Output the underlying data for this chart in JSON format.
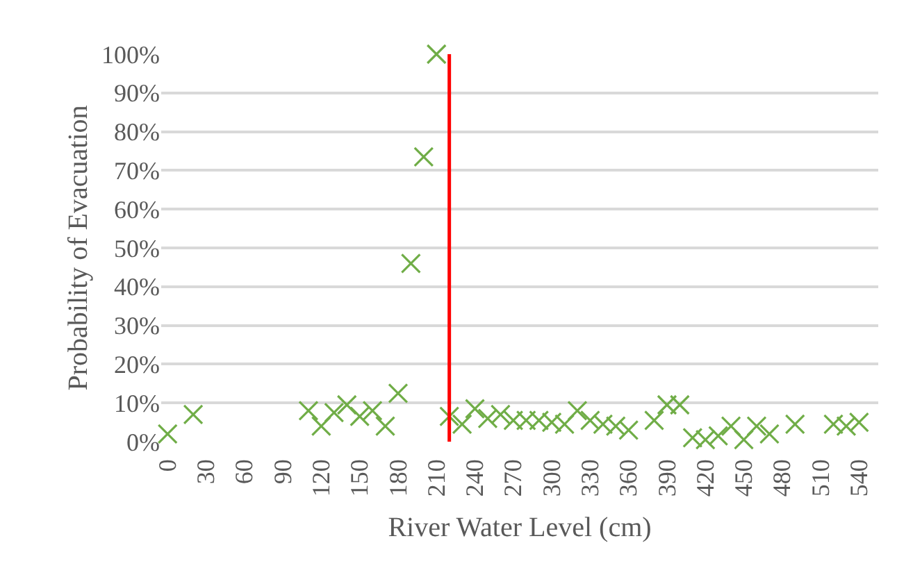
{
  "chart_data": {
    "type": "scatter",
    "xlabel": "River Water Level (cm)",
    "ylabel": "Probability of Evacuation",
    "x": [
      0,
      20,
      110,
      120,
      130,
      140,
      150,
      160,
      170,
      180,
      190,
      200,
      210,
      220,
      230,
      240,
      250,
      260,
      270,
      280,
      290,
      300,
      310,
      320,
      330,
      340,
      350,
      360,
      380,
      390,
      400,
      410,
      420,
      430,
      440,
      450,
      460,
      470,
      490,
      520,
      530,
      540
    ],
    "series": [
      {
        "color": "#70ad47",
        "values": [
          2,
          7,
          8,
          4,
          7.5,
          9.5,
          6.5,
          8,
          4,
          12.5,
          46,
          73.5,
          100,
          6.5,
          4.5,
          8.5,
          6,
          7,
          5.5,
          5.5,
          5.5,
          5,
          4.5,
          8,
          5.5,
          4.5,
          4,
          3,
          5.5,
          9.5,
          9.5,
          1,
          0.5,
          1.5,
          4,
          0.5,
          4,
          2,
          4.5,
          4.5,
          4,
          5
        ]
      }
    ],
    "xlim": [
      -5,
      555
    ],
    "xticks": [
      0,
      30,
      60,
      90,
      120,
      150,
      180,
      210,
      240,
      270,
      300,
      330,
      360,
      390,
      420,
      450,
      480,
      510,
      540
    ],
    "ylim": [
      0,
      100
    ],
    "yticks": [
      {
        "value": 0,
        "label": "0%"
      },
      {
        "value": 10,
        "label": "10%"
      },
      {
        "value": 20,
        "label": "20%"
      },
      {
        "value": 30,
        "label": "30%"
      },
      {
        "value": 40,
        "label": "40%"
      },
      {
        "value": 50,
        "label": "50%"
      },
      {
        "value": 60,
        "label": "60%"
      },
      {
        "value": 70,
        "label": "70%"
      },
      {
        "value": 80,
        "label": "80%"
      },
      {
        "value": 90,
        "label": "90%"
      },
      {
        "value": 100,
        "label": "100%"
      }
    ],
    "ref_lines": [
      {
        "axis": "x",
        "value": 220,
        "color": "#ff0000"
      }
    ],
    "grid": "y",
    "marker": "cross"
  }
}
